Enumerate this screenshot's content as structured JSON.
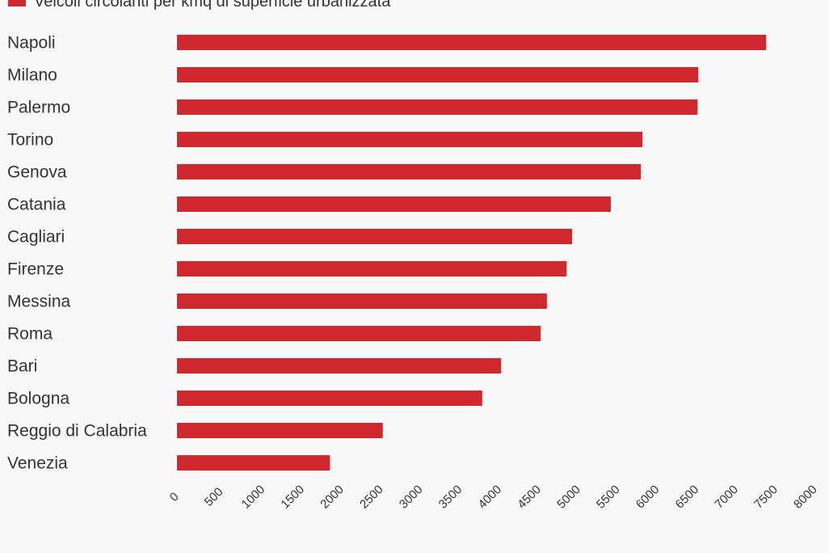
{
  "chart_data": {
    "type": "bar",
    "orientation": "horizontal",
    "categories": [
      "Napoli",
      "Milano",
      "Palermo",
      "Torino",
      "Genova",
      "Catania",
      "Cagliari",
      "Firenze",
      "Messina",
      "Roma",
      "Bari",
      "Bologna",
      "Reggio di Calabria",
      "Venezia"
    ],
    "series": [
      {
        "name": "Veicoli circolanti per kmq di superficie urbanizzata",
        "color": "#d0282f",
        "values": [
          7470,
          6610,
          6600,
          5900,
          5880,
          5500,
          5010,
          4940,
          4690,
          4610,
          4110,
          3870,
          2610,
          1940
        ]
      }
    ],
    "xlim": [
      0,
      8000
    ],
    "xticks": [
      0,
      500,
      1000,
      1500,
      2000,
      2500,
      3000,
      3500,
      4000,
      4500,
      5000,
      5500,
      6000,
      6500,
      7000,
      7500,
      8000
    ],
    "grid": false,
    "legend": "top-left"
  }
}
